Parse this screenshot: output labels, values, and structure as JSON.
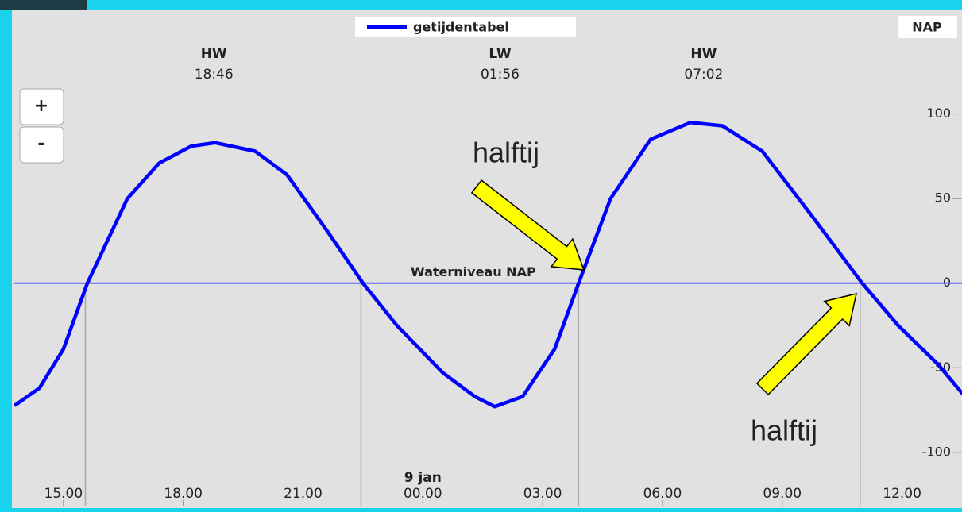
{
  "chart_data": {
    "type": "line",
    "y_label": "NAP",
    "date_label": "9 jan",
    "reference_line": {
      "value": 0,
      "label": "Waterniveau NAP"
    },
    "events": [
      {
        "label": "HW",
        "time": "18:46"
      },
      {
        "label": "LW",
        "time": "01:56"
      },
      {
        "label": "HW",
        "time": "07:02"
      }
    ],
    "annotations": [
      "halftij",
      "halftij"
    ],
    "buttons": [
      "+",
      "-"
    ],
    "x": [
      13.8,
      14.4,
      15.0,
      15.6,
      16.6,
      17.4,
      18.2,
      18.8,
      19.8,
      20.6,
      21.6,
      22.5,
      23.35,
      24.5,
      25.3,
      25.8,
      26.5,
      27.3,
      27.9,
      28.7,
      29.7,
      30.7,
      31.5,
      32.5,
      33.7,
      35.0,
      35.9,
      36.9,
      37.5
    ],
    "series": [
      {
        "name": "getijdentabel",
        "color": "#0000ff",
        "values": [
          -72,
          -62,
          -39,
          0,
          50,
          71,
          81,
          83,
          78,
          64,
          31,
          0,
          -25,
          -53,
          -67,
          -73,
          -67,
          -39,
          0,
          50,
          85,
          95,
          93,
          78,
          41,
          0,
          -25,
          -48,
          -65
        ]
      }
    ],
    "vlines": [
      15.55,
      22.45,
      27.9,
      34.95
    ],
    "xlim": [
      13.77,
      37.5
    ],
    "xticks": [
      {
        "value": 15,
        "label": "15.00"
      },
      {
        "value": 18,
        "label": "18.00"
      },
      {
        "value": 21,
        "label": "21.00"
      },
      {
        "value": 24,
        "label": "00.00"
      },
      {
        "value": 27,
        "label": "03.00"
      },
      {
        "value": 30,
        "label": "06.00"
      },
      {
        "value": 33,
        "label": "09.00"
      },
      {
        "value": 36,
        "label": "12.00"
      }
    ],
    "ylim": [
      -132,
      158
    ],
    "yticks": [
      -100,
      -50,
      0,
      50,
      100
    ]
  }
}
